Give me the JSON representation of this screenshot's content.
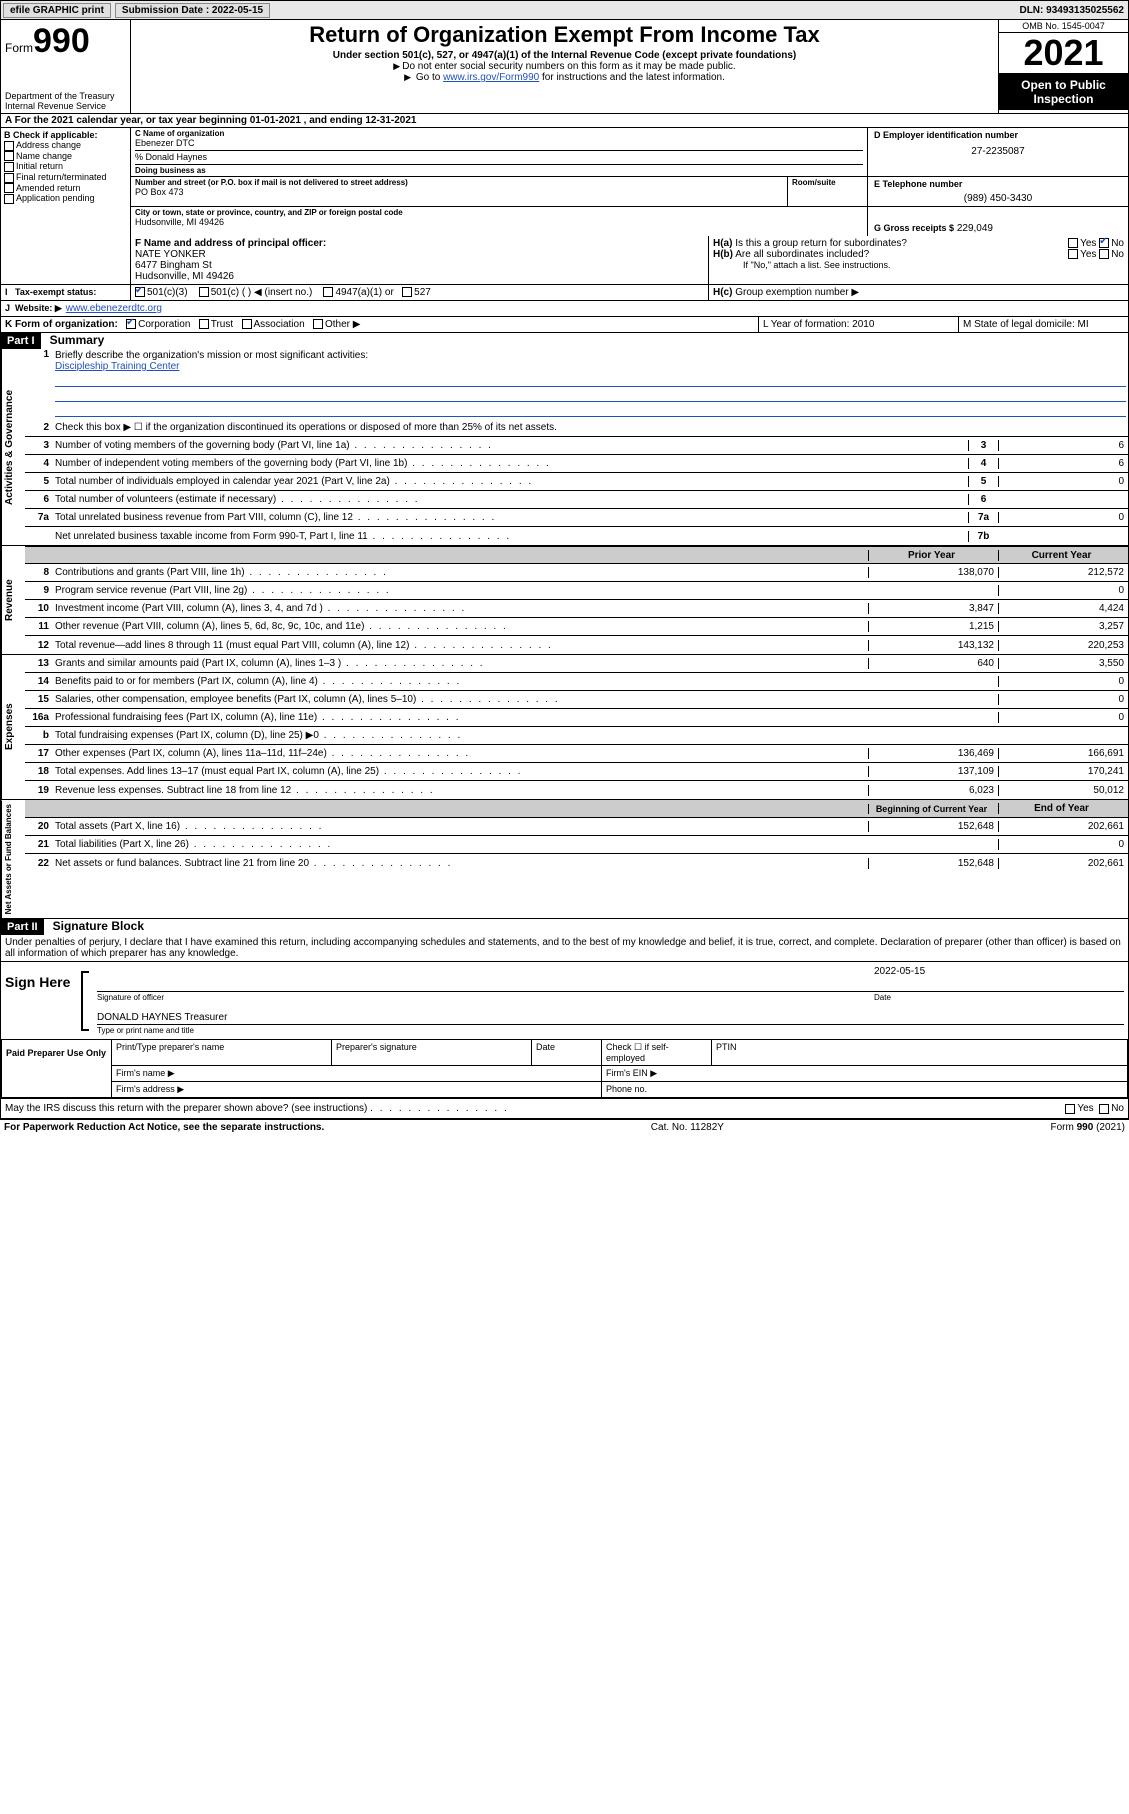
{
  "topbar": {
    "efile": "efile GRAPHIC print",
    "submission_label": "Submission Date : 2022-05-15",
    "dln_label": "DLN: 93493135025562"
  },
  "header": {
    "form_label": "Form",
    "form_num": "990",
    "title": "Return of Organization Exempt From Income Tax",
    "subtitle": "Under section 501(c), 527, or 4947(a)(1) of the Internal Revenue Code (except private foundations)",
    "note1": "Do not enter social security numbers on this form as it may be made public.",
    "note2_pre": "Go to ",
    "note2_link": "www.irs.gov/Form990",
    "note2_post": " for instructions and the latest information.",
    "dept": "Department of the Treasury",
    "irs": "Internal Revenue Service",
    "omb": "OMB No. 1545-0047",
    "year": "2021",
    "otpi": "Open to Public Inspection"
  },
  "line_a": "For the 2021 calendar year, or tax year beginning 01-01-2021   , and ending 12-31-2021",
  "section_b": {
    "header": "B Check if applicable:",
    "items": [
      "Address change",
      "Name change",
      "Initial return",
      "Final return/terminated",
      "Amended return",
      "Application pending"
    ]
  },
  "section_c": {
    "name_label": "C Name of organization",
    "name": "Ebenezer DTC",
    "care_of": "% Donald Haynes",
    "dba_label": "Doing business as",
    "addr_label": "Number and street (or P.O. box if mail is not delivered to street address)",
    "room_label": "Room/suite",
    "addr": "PO Box 473",
    "city_label": "City or town, state or province, country, and ZIP or foreign postal code",
    "city": "Hudsonville, MI  49426"
  },
  "section_d": {
    "label": "D Employer identification number",
    "value": "27-2235087"
  },
  "section_e": {
    "label": "E Telephone number",
    "value": "(989) 450-3430"
  },
  "section_g": {
    "label": "G Gross receipts $",
    "value": "229,049"
  },
  "section_f": {
    "label": "F Name and address of principal officer:",
    "name": "NATE YONKER",
    "addr1": "6477 Bingham St",
    "addr2": "Hudsonville, MI  49426"
  },
  "section_h": {
    "ha": "Is this a group return for subordinates?",
    "hb": "Are all subordinates included?",
    "hb_note": "If \"No,\" attach a list. See instructions.",
    "hc": "Group exemption number ▶"
  },
  "section_i": {
    "label": "Tax-exempt status:",
    "opt1": "501(c)(3)",
    "opt2": "501(c) (   ) ◀ (insert no.)",
    "opt3": "4947(a)(1) or",
    "opt4": "527"
  },
  "section_j": {
    "label": "Website: ▶",
    "value": "www.ebenezerdtc.org"
  },
  "section_k": {
    "label": "K Form of organization:",
    "opts": [
      "Corporation",
      "Trust",
      "Association",
      "Other ▶"
    ]
  },
  "section_l": {
    "label": "L Year of formation: 2010"
  },
  "section_m": {
    "label": "M State of legal domicile: MI"
  },
  "parts": {
    "p1": "Part I",
    "p1_title": "Summary",
    "p2": "Part II",
    "p2_title": "Signature Block"
  },
  "summary": {
    "q1": "Briefly describe the organization's mission or most significant activities:",
    "mission": "Discipleship Training Center",
    "q2": "Check this box ▶ ☐  if the organization discontinued its operations or disposed of more than 25% of its net assets.",
    "rows_gov": [
      {
        "n": "3",
        "d": "Number of voting members of the governing body (Part VI, line 1a)",
        "rn": "3",
        "v": "6"
      },
      {
        "n": "4",
        "d": "Number of independent voting members of the governing body (Part VI, line 1b)",
        "rn": "4",
        "v": "6"
      },
      {
        "n": "5",
        "d": "Total number of individuals employed in calendar year 2021 (Part V, line 2a)",
        "rn": "5",
        "v": "0"
      },
      {
        "n": "6",
        "d": "Total number of volunteers (estimate if necessary)",
        "rn": "6",
        "v": ""
      },
      {
        "n": "7a",
        "d": "Total unrelated business revenue from Part VIII, column (C), line 12",
        "rn": "7a",
        "v": "0"
      },
      {
        "n": "",
        "d": "Net unrelated business taxable income from Form 990-T, Part I, line 11",
        "rn": "7b",
        "v": ""
      }
    ],
    "col_prior": "Prior Year",
    "col_current": "Current Year",
    "rows_rev": [
      {
        "n": "8",
        "d": "Contributions and grants (Part VIII, line 1h)",
        "p": "138,070",
        "c": "212,572"
      },
      {
        "n": "9",
        "d": "Program service revenue (Part VIII, line 2g)",
        "p": "",
        "c": "0"
      },
      {
        "n": "10",
        "d": "Investment income (Part VIII, column (A), lines 3, 4, and 7d )",
        "p": "3,847",
        "c": "4,424"
      },
      {
        "n": "11",
        "d": "Other revenue (Part VIII, column (A), lines 5, 6d, 8c, 9c, 10c, and 11e)",
        "p": "1,215",
        "c": "3,257"
      },
      {
        "n": "12",
        "d": "Total revenue—add lines 8 through 11 (must equal Part VIII, column (A), line 12)",
        "p": "143,132",
        "c": "220,253"
      }
    ],
    "rows_exp": [
      {
        "n": "13",
        "d": "Grants and similar amounts paid (Part IX, column (A), lines 1–3 )",
        "p": "640",
        "c": "3,550"
      },
      {
        "n": "14",
        "d": "Benefits paid to or for members (Part IX, column (A), line 4)",
        "p": "",
        "c": "0"
      },
      {
        "n": "15",
        "d": "Salaries, other compensation, employee benefits (Part IX, column (A), lines 5–10)",
        "p": "",
        "c": "0"
      },
      {
        "n": "16a",
        "d": "Professional fundraising fees (Part IX, column (A), line 11e)",
        "p": "",
        "c": "0"
      },
      {
        "n": "b",
        "d": "Total fundraising expenses (Part IX, column (D), line 25) ▶0",
        "p": "shaded",
        "c": "shaded"
      },
      {
        "n": "17",
        "d": "Other expenses (Part IX, column (A), lines 11a–11d, 11f–24e)",
        "p": "136,469",
        "c": "166,691"
      },
      {
        "n": "18",
        "d": "Total expenses. Add lines 13–17 (must equal Part IX, column (A), line 25)",
        "p": "137,109",
        "c": "170,241"
      },
      {
        "n": "19",
        "d": "Revenue less expenses. Subtract line 18 from line 12",
        "p": "6,023",
        "c": "50,012"
      }
    ],
    "col_begin": "Beginning of Current Year",
    "col_end": "End of Year",
    "rows_net": [
      {
        "n": "20",
        "d": "Total assets (Part X, line 16)",
        "p": "152,648",
        "c": "202,661"
      },
      {
        "n": "21",
        "d": "Total liabilities (Part X, line 26)",
        "p": "",
        "c": "0"
      },
      {
        "n": "22",
        "d": "Net assets or fund balances. Subtract line 21 from line 20",
        "p": "152,648",
        "c": "202,661"
      }
    ],
    "vlabels": {
      "gov": "Activities & Governance",
      "rev": "Revenue",
      "exp": "Expenses",
      "net": "Net Assets or Fund Balances"
    }
  },
  "sig": {
    "perjury": "Under penalties of perjury, I declare that I have examined this return, including accompanying schedules and statements, and to the best of my knowledge and belief, it is true, correct, and complete. Declaration of preparer (other than officer) is based on all information of which preparer has any knowledge.",
    "sign_here": "Sign Here",
    "sig_officer": "Signature of officer",
    "date_label": "Date",
    "date": "2022-05-15",
    "name_title": "DONALD HAYNES  Treasurer",
    "type_name": "Type or print name and title",
    "paid": "Paid Preparer Use Only",
    "prep_name": "Print/Type preparer's name",
    "prep_sig": "Preparer's signature",
    "prep_date": "Date",
    "self_emp": "Check ☐ if self-employed",
    "ptin": "PTIN",
    "firm_name": "Firm's name   ▶",
    "firm_ein": "Firm's EIN ▶",
    "firm_addr": "Firm's address ▶",
    "phone": "Phone no.",
    "discuss": "May the IRS discuss this return with the preparer shown above? (see instructions)"
  },
  "footer": {
    "pra": "For Paperwork Reduction Act Notice, see the separate instructions.",
    "cat": "Cat. No. 11282Y",
    "form": "Form 990 (2021)"
  }
}
